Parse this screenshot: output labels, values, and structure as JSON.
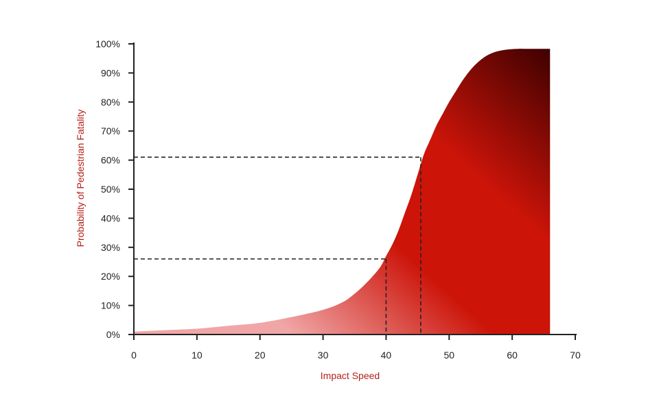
{
  "chart_data": {
    "type": "area",
    "title": "",
    "xlabel": "Impact Speed",
    "ylabel": "Probability of Pedestrian Fatality",
    "xlim": [
      0,
      70
    ],
    "ylim": [
      0,
      100
    ],
    "x_ticks": [
      "0",
      "10",
      "20",
      "30",
      "40",
      "50",
      "60",
      "70"
    ],
    "y_ticks": [
      "0%",
      "10%",
      "20%",
      "30%",
      "40%",
      "50%",
      "60%",
      "70%",
      "80%",
      "90%",
      "100%"
    ],
    "x": [
      0,
      5,
      10,
      15,
      20,
      25,
      30,
      33,
      35,
      37,
      39,
      40,
      41,
      42,
      43,
      44,
      45,
      46,
      47,
      48,
      49,
      50,
      51,
      52,
      53,
      54,
      55,
      56,
      57,
      58,
      59,
      60,
      61,
      62,
      64,
      66
    ],
    "y": [
      1,
      1.5,
      2,
      3,
      4,
      6,
      8.5,
      11,
      14,
      18,
      23,
      27,
      31,
      36,
      42,
      48,
      55,
      62,
      67,
      72,
      76,
      80,
      83.5,
      87,
      90,
      92.5,
      94.5,
      96,
      97,
      97.6,
      98,
      98.2,
      98.3,
      98.3,
      98.3,
      98.3
    ],
    "reference_lines": [
      {
        "x": 40,
        "y": 26
      },
      {
        "x": 45.5,
        "y": 61
      }
    ],
    "grid": false,
    "colors": {
      "light_fill": "#f0a6a6",
      "mid_fill": "#cc1409",
      "dark_fill": "#3a0000",
      "axis": "#222222",
      "axis_title": "#b3201a"
    }
  }
}
